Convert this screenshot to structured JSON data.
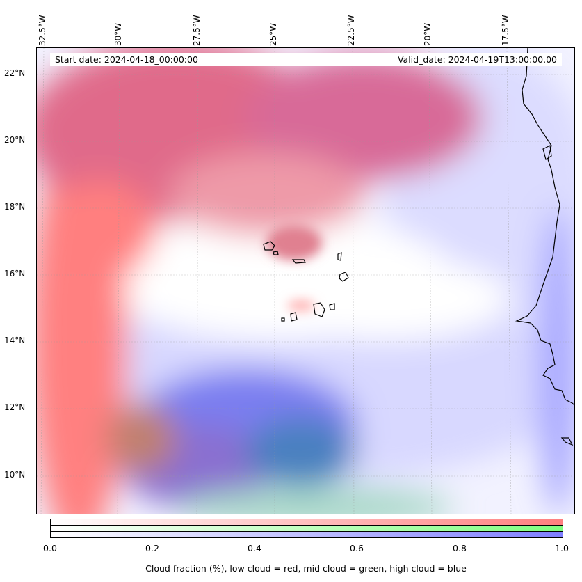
{
  "map": {
    "start_date": "Start date: 2024-04-18_00:00:00",
    "valid_date": "Valid_date: 2024-04-19T13:00:00.00",
    "lon_labels": [
      "32.5°W",
      "30°W",
      "27.5°W",
      "25°W",
      "22.5°W",
      "20°W",
      "17.5°W"
    ],
    "lat_labels": [
      "22°N",
      "20°N",
      "18°N",
      "16°N",
      "14°N",
      "12°N",
      "10°N"
    ]
  },
  "colorbar": {
    "ticks": [
      "0.0",
      "0.2",
      "0.4",
      "0.6",
      "0.8",
      "1.0"
    ],
    "label": "Cloud fraction (%), low cloud = red, mid cloud = green, high cloud = blue",
    "colors": {
      "low": "#ff7f7f",
      "mid": "#7fff7f",
      "high": "#7f7fff"
    }
  }
}
